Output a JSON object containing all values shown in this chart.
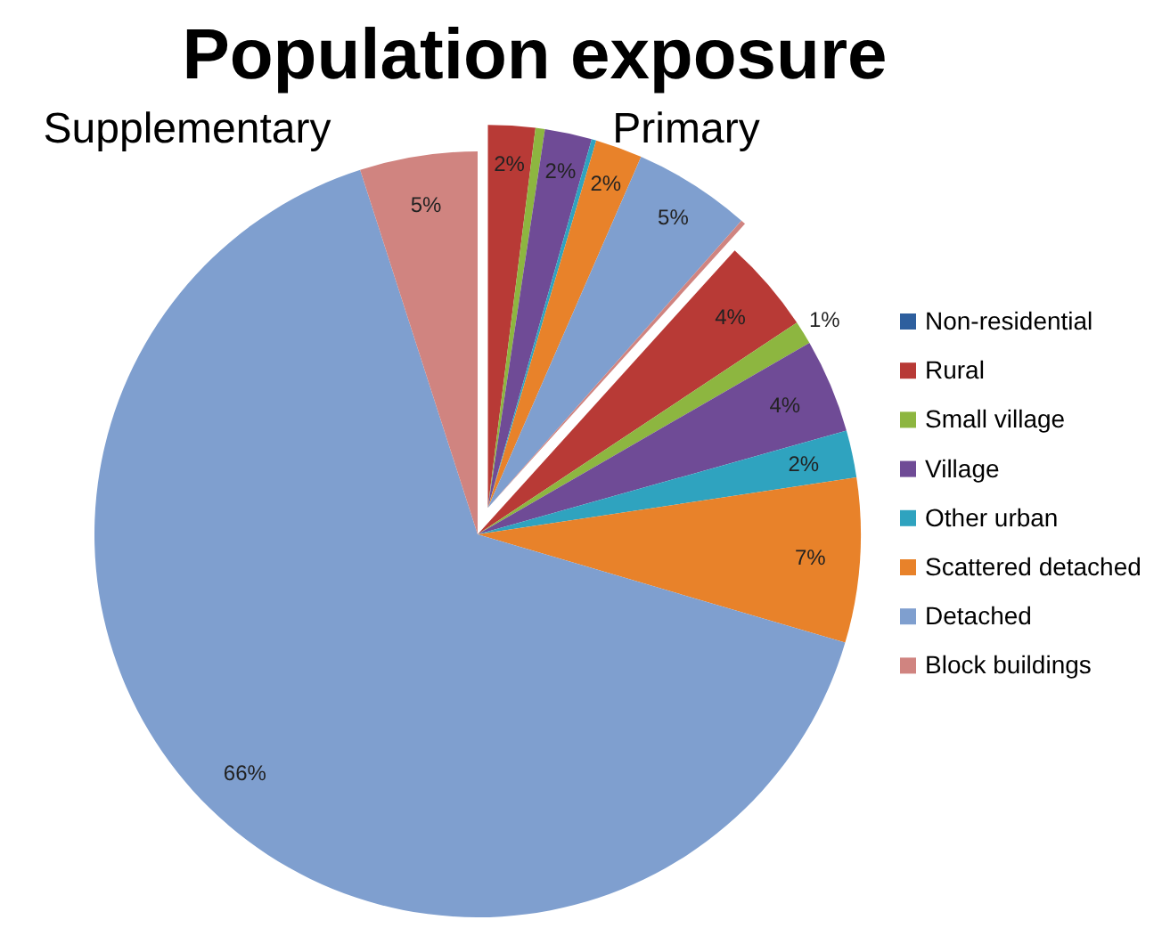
{
  "chart_data": {
    "type": "pie",
    "title": "Population exposure",
    "categories": [
      null,
      null,
      null,
      null,
      null,
      null,
      null,
      "Non-residential",
      "Rural",
      "Small village",
      "Village",
      "Other urban",
      "Scattered detached",
      "Detached",
      "Block buildings"
    ],
    "colors": [
      "#b83a36",
      "#8db640",
      "#6f4b96",
      "#2fa3bf",
      "#e8822a",
      "#7f9fcf",
      "#d08480",
      "#2e5f9e",
      "#b83a36",
      "#8db640",
      "#6f4b96",
      "#2fa3bf",
      "#e8822a",
      "#7f9fcf",
      "#d08480"
    ],
    "values": [
      2,
      0.4,
      2,
      0.2,
      2,
      5,
      0.2,
      0,
      4,
      1,
      4,
      2,
      7,
      66,
      5
    ],
    "value_labels": [
      "2%",
      null,
      "2%",
      null,
      "2%",
      "5%",
      null,
      null,
      "4%",
      "1%",
      "4%",
      "2%",
      "7%",
      "66%",
      "5%"
    ],
    "annotations": [
      "Primary",
      "Supplementary"
    ],
    "legend": "right"
  }
}
